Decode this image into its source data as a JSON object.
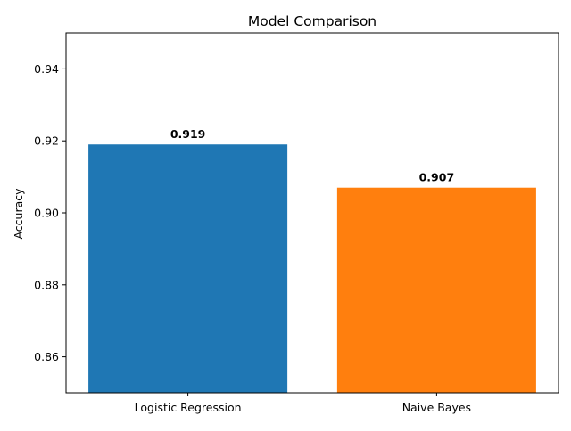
{
  "chart_data": {
    "type": "bar",
    "title": "Model Comparison",
    "xlabel": "",
    "ylabel": "Accuracy",
    "categories": [
      "Logistic Regression",
      "Naive Bayes"
    ],
    "values": [
      0.919,
      0.907
    ],
    "value_labels": [
      "0.919",
      "0.907"
    ],
    "colors": [
      "#1f77b4",
      "#ff7f0e"
    ],
    "ylim": [
      0.85,
      0.95
    ],
    "yticks": [
      0.86,
      0.88,
      0.9,
      0.92,
      0.94
    ],
    "ytick_labels": [
      "0.86",
      "0.88",
      "0.90",
      "0.92",
      "0.94"
    ],
    "grid": false,
    "legend": "none"
  }
}
